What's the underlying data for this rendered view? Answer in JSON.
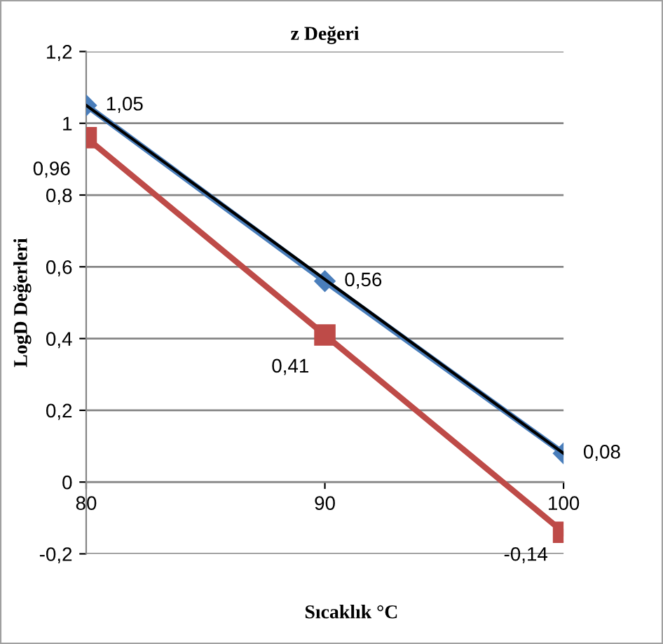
{
  "chart_data": {
    "type": "line",
    "title": "z Değeri",
    "xlabel": "Sıcaklık °C",
    "ylabel": "LogD Değerleri",
    "x": [
      80,
      90,
      100
    ],
    "series": [
      {
        "color": "#4a7ebb",
        "values": [
          1.05,
          0.56,
          0.08
        ],
        "marker": "diamond",
        "value_labels": [
          "1,05",
          "0,56",
          "0,08"
        ]
      },
      {
        "color": "#be4b48",
        "values": [
          0.96,
          0.41,
          -0.14
        ],
        "marker": "square",
        "value_labels": [
          "0,96",
          "0,41",
          "-0,14"
        ]
      },
      {
        "type": "line",
        "color": "#000000",
        "x": [
          80,
          100
        ],
        "values": [
          1.05,
          0.08
        ],
        "marker": "none"
      }
    ],
    "xlim": [
      80,
      100
    ],
    "xticks": [
      80,
      90,
      100
    ],
    "ylim": [
      -0.2,
      1.2
    ],
    "yticks": [
      {
        "value": -0.2,
        "label": "-0,2"
      },
      0,
      {
        "value": 0.2,
        "label": "0,2"
      },
      {
        "value": 0.4,
        "label": "0,4"
      },
      {
        "value": 0.6,
        "label": "0,6"
      },
      {
        "value": 0.8,
        "label": "0,8"
      },
      1,
      {
        "value": 1.2,
        "label": "1,2"
      }
    ],
    "grid": "y",
    "legend": false
  }
}
